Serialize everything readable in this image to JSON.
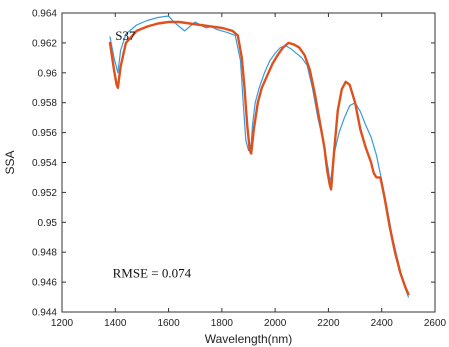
{
  "chart_data": {
    "type": "line",
    "xlabel": "Wavelength(nm)",
    "ylabel": "SSA",
    "xlim": [
      1200,
      2600
    ],
    "ylim": [
      0.944,
      0.964
    ],
    "xticks": [
      1200,
      1400,
      1600,
      1800,
      2000,
      2200,
      2400,
      2600
    ],
    "xtick_labels": [
      "1200",
      "1400",
      "1600",
      "1800",
      "2000",
      "2200",
      "2400",
      "2600"
    ],
    "yticks": [
      0.944,
      0.946,
      0.948,
      0.95,
      0.952,
      0.954,
      0.956,
      0.958,
      0.96,
      0.962,
      0.964
    ],
    "ytick_labels": [
      "0.944",
      "0.946",
      "0.948",
      "0.95",
      "0.952",
      "0.954",
      "0.956",
      "0.958",
      "0.96",
      "0.962",
      "0.964"
    ],
    "grid": false,
    "annotations": [
      {
        "text": "S37",
        "x": 1400,
        "y": 0.9622
      },
      {
        "text": "RMSE = 0.074",
        "x": 1390,
        "y": 0.9463
      }
    ],
    "series": [
      {
        "color": "#3a9ad9",
        "x": [
          1380,
          1395,
          1410,
          1420,
          1440,
          1480,
          1520,
          1560,
          1600,
          1620,
          1640,
          1660,
          1680,
          1700,
          1720,
          1740,
          1760,
          1780,
          1800,
          1820,
          1850,
          1870,
          1880,
          1890,
          1900,
          1910,
          1915,
          1925,
          1940,
          1960,
          1980,
          2000,
          2020,
          2040,
          2060,
          2080,
          2100,
          2120,
          2140,
          2160,
          2180,
          2200,
          2205,
          2210,
          2220,
          2240,
          2260,
          2280,
          2300,
          2320,
          2340,
          2360,
          2380,
          2400,
          2420,
          2440,
          2460,
          2480,
          2500
        ],
        "y": [
          0.9624,
          0.961,
          0.96,
          0.9615,
          0.9626,
          0.9632,
          0.9635,
          0.9637,
          0.9638,
          0.9634,
          0.9631,
          0.9628,
          0.9631,
          0.9634,
          0.9632,
          0.963,
          0.9631,
          0.9629,
          0.9628,
          0.9627,
          0.9625,
          0.9608,
          0.958,
          0.9555,
          0.9548,
          0.9552,
          0.9565,
          0.958,
          0.959,
          0.96,
          0.9608,
          0.9613,
          0.9617,
          0.9618,
          0.9616,
          0.9613,
          0.961,
          0.9605,
          0.959,
          0.957,
          0.9555,
          0.9535,
          0.9528,
          0.953,
          0.9545,
          0.956,
          0.957,
          0.9578,
          0.958,
          0.9574,
          0.9565,
          0.9557,
          0.9545,
          0.9528,
          0.951,
          0.949,
          0.9475,
          0.946,
          0.945
        ]
      },
      {
        "color": "#e0501c",
        "x": [
          1380,
          1395,
          1405,
          1410,
          1420,
          1440,
          1480,
          1520,
          1560,
          1600,
          1640,
          1680,
          1720,
          1760,
          1800,
          1840,
          1860,
          1875,
          1885,
          1895,
          1905,
          1910,
          1920,
          1935,
          1950,
          1970,
          1990,
          2010,
          2030,
          2050,
          2070,
          2090,
          2110,
          2130,
          2150,
          2170,
          2185,
          2195,
          2205,
          2210,
          2220,
          2235,
          2250,
          2265,
          2280,
          2300,
          2320,
          2340,
          2360,
          2370,
          2380,
          2395,
          2410,
          2430,
          2450,
          2470,
          2490,
          2500
        ],
        "y": [
          0.962,
          0.9602,
          0.9592,
          0.959,
          0.9604,
          0.962,
          0.9628,
          0.9631,
          0.9633,
          0.9634,
          0.9634,
          0.9633,
          0.9632,
          0.9631,
          0.963,
          0.9628,
          0.9625,
          0.961,
          0.959,
          0.9565,
          0.9548,
          0.9546,
          0.9562,
          0.958,
          0.959,
          0.9598,
          0.9606,
          0.9612,
          0.9617,
          0.962,
          0.9619,
          0.9617,
          0.9612,
          0.9602,
          0.9585,
          0.9565,
          0.955,
          0.9535,
          0.9525,
          0.9522,
          0.9545,
          0.9575,
          0.9589,
          0.9594,
          0.9592,
          0.958,
          0.9562,
          0.955,
          0.954,
          0.9533,
          0.953,
          0.953,
          0.9517,
          0.9497,
          0.948,
          0.9466,
          0.9456,
          0.9452
        ]
      }
    ]
  }
}
